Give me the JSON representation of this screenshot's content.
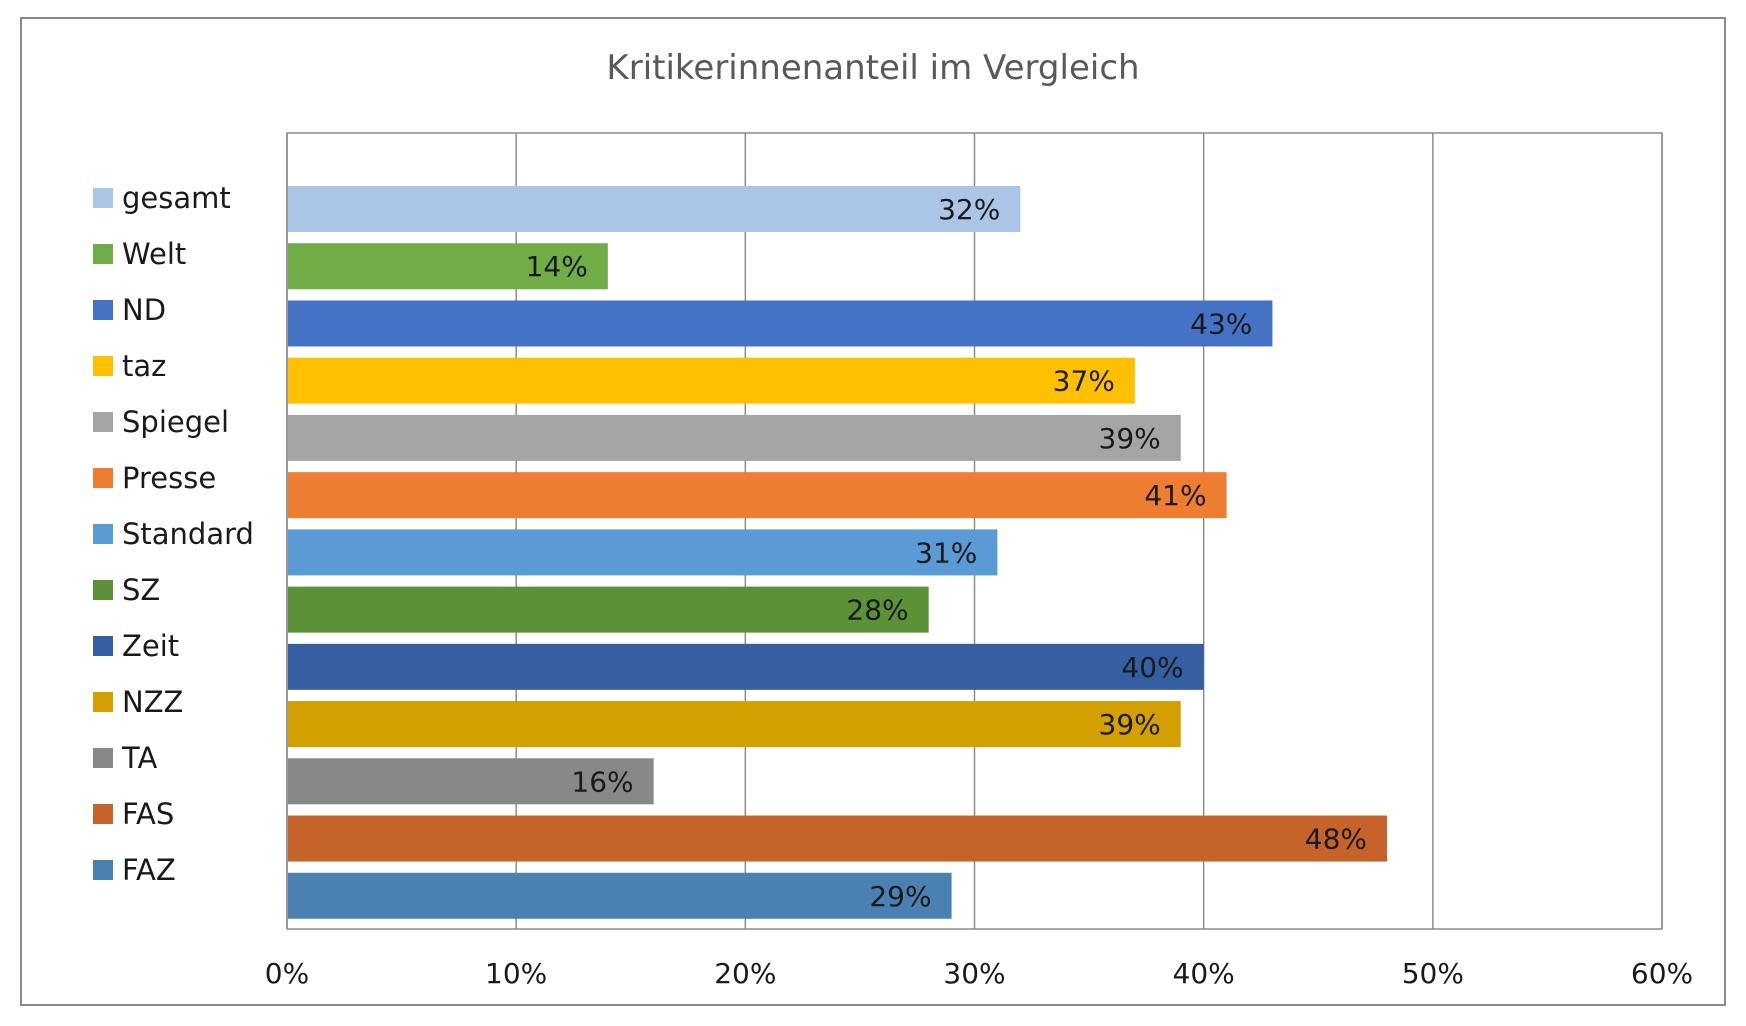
{
  "chart_data": {
    "type": "bar",
    "orientation": "horizontal",
    "title": "Kritikerinnenanteil im Vergleich",
    "xlim": [
      0,
      60
    ],
    "x_ticks": [
      "0%",
      "10%",
      "20%",
      "30%",
      "40%",
      "50%",
      "60%"
    ],
    "grid": true,
    "legend_position": "left",
    "categories": [
      "gesamt",
      "Welt",
      "ND",
      "taz",
      "Spiegel",
      "Presse",
      "Standard",
      "SZ",
      "Zeit",
      "NZZ",
      "TA",
      "FAS",
      "FAZ"
    ],
    "values": [
      32,
      14,
      43,
      37,
      39,
      41,
      31,
      28,
      40,
      39,
      16,
      48,
      29
    ],
    "value_labels": [
      "32%",
      "14%",
      "43%",
      "37%",
      "39%",
      "41%",
      "31%",
      "28%",
      "40%",
      "39%",
      "16%",
      "48%",
      "29%"
    ],
    "colors": [
      "#abc5e6",
      "#70ad47",
      "#4472c4",
      "#ffc000",
      "#a5a5a5",
      "#ed7d31",
      "#5b9bd5",
      "#5b9237",
      "#365ea3",
      "#d4a000",
      "#888888",
      "#c5632a",
      "#4a80b2"
    ]
  }
}
